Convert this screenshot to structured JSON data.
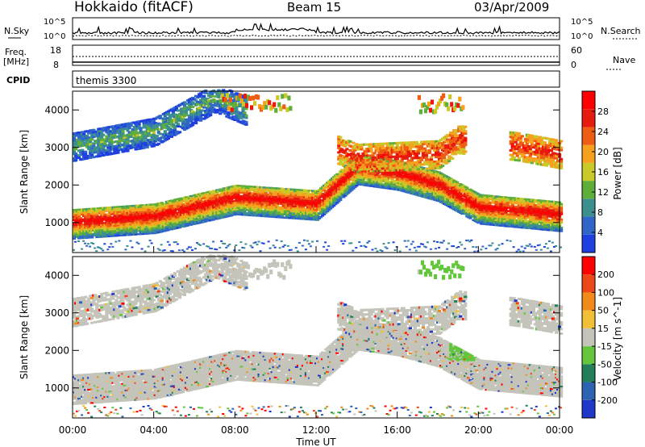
{
  "header": {
    "station": "Hokkaido (fitACF)",
    "beam": "Beam 15",
    "date": "03/Apr/2009"
  },
  "nsky_panel": {
    "left_label": "N.Sky",
    "right_label": "N.Search",
    "left_ticks": [
      "10^5",
      "10^0"
    ],
    "right_ticks": [
      "10^5",
      "10^0"
    ]
  },
  "freq_panel": {
    "left_label_1": "Freq.",
    "left_label_2": "[MHz]",
    "right_label": "Nave",
    "left_ticks": [
      "18",
      "8"
    ],
    "right_ticks": [
      "60",
      "0"
    ]
  },
  "cpid_panel": {
    "label": "CPID",
    "value": "themis 3300"
  },
  "colors": {
    "power_scale": [
      "#1f3fe0",
      "#2f66c8",
      "#3c8f8f",
      "#5fae3a",
      "#c9c92a",
      "#f5a11e",
      "#ee5d14",
      "#e61a0f",
      "#ff0000"
    ],
    "velocity_scale": [
      "#1f38c9",
      "#2c63b2",
      "#227f5a",
      "#63c63d",
      "#c4c4bb",
      "#f2c036",
      "#f28a1b",
      "#ed4719",
      "#ff0000"
    ],
    "gray": "#c4c4bb"
  },
  "chart_data": [
    {
      "type": "heatmap",
      "panel": "power",
      "ylabel": "Slant Range [km]",
      "ylim": [
        200,
        4500
      ],
      "xlim": [
        0,
        24
      ],
      "yticks": [
        "1000",
        "2000",
        "3000",
        "4000"
      ],
      "colorbar_label": "Power [dB]",
      "colorbar_ticks": [
        "4",
        "8",
        "12",
        "16",
        "20",
        "24",
        "28"
      ],
      "bands": [
        {
          "name": "main",
          "range_km": [
            [
              0,
              1000
            ],
            [
              4,
              1150
            ],
            [
              8,
              1650
            ],
            [
              12,
              1500
            ],
            [
              14,
              2450
            ],
            [
              16,
              2300
            ],
            [
              18,
              2000
            ],
            [
              20,
              1400
            ],
            [
              22,
              1300
            ],
            [
              24,
              1200
            ]
          ]
        },
        {
          "name": "upper",
          "range_km": [
            [
              0,
              3000
            ],
            [
              4,
              3400
            ],
            [
              7,
              4300
            ],
            [
              14,
              2700
            ],
            [
              18,
              2800
            ],
            [
              19,
              3200
            ],
            [
              22,
              3000
            ],
            [
              24,
              2800
            ]
          ]
        }
      ]
    },
    {
      "type": "heatmap",
      "panel": "velocity",
      "ylabel": "Slant Range [km]",
      "ylim": [
        200,
        4500
      ],
      "xlim": [
        0,
        24
      ],
      "yticks": [
        "1000",
        "2000",
        "3000",
        "4000"
      ],
      "colorbar_label": "Velocity [m s^-1]",
      "colorbar_ticks": [
        "200",
        "100",
        "50",
        "15",
        "-15",
        "-50",
        "-100",
        "-200"
      ],
      "xlabel": "Time UT",
      "xticks": [
        "00:00",
        "04:00",
        "08:00",
        "12:00",
        "16:00",
        "20:00",
        "00:00"
      ]
    }
  ]
}
